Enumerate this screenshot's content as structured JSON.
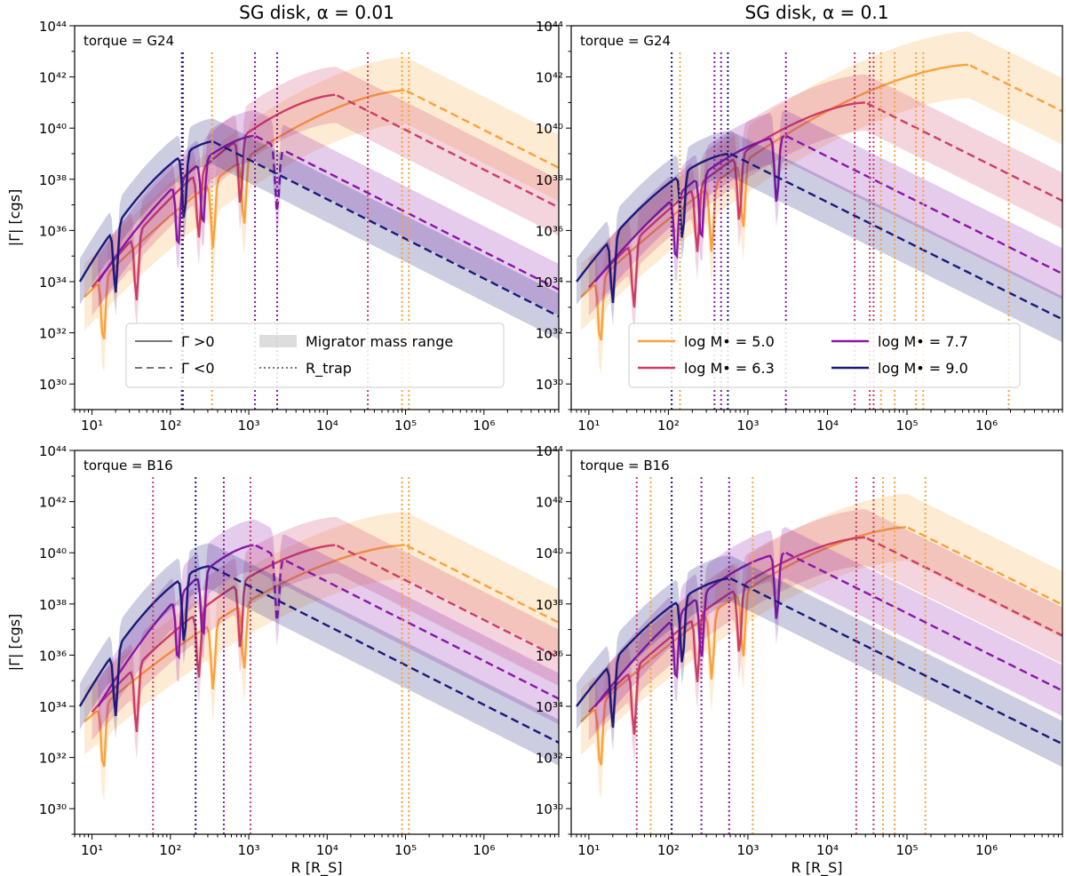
{
  "figure": {
    "legend_style": {
      "entries": [
        {
          "label": "Γ >0",
          "style": "solid"
        },
        {
          "label": "Γ <0",
          "style": "dashed"
        },
        {
          "label": "Migrator mass range",
          "style": "band"
        },
        {
          "label": "R_trap",
          "style": "dotted"
        }
      ],
      "placement": "lower-left",
      "panel": 0
    },
    "legend_mass": {
      "entries": [
        {
          "label": "log M• = 5.0",
          "color": "#f9a23c"
        },
        {
          "label": "log M• = 6.3",
          "color": "#cc3d65"
        },
        {
          "label": "log M• = 7.7",
          "color": "#8a16a8"
        },
        {
          "label": "log M• = 9.0",
          "color": "#1a1a7a"
        }
      ],
      "placement": "lower-right",
      "panel": 1
    }
  },
  "chart_data": [
    {
      "type": "line",
      "title": "SG disk, α = 0.01",
      "annotation": "torque = G24",
      "xlabel": "",
      "ylabel": "|Γ| [cgs]",
      "x_scale": "log",
      "y_scale": "log",
      "xlim": [
        6,
        9000000
      ],
      "ylim": [
        1e+29,
        1e+44
      ],
      "x_ticks": [
        "10¹",
        "10²",
        "10³",
        "10⁴",
        "10⁵",
        "10⁶"
      ],
      "y_ticks": [
        "10³⁰",
        "10³²",
        "10³⁴",
        "10³⁶",
        "10³⁸",
        "10⁴⁰",
        "10⁴²",
        "10⁴⁴"
      ],
      "r_trap": [
        {
          "mass": "log M• = 5.0",
          "x": [
            340,
            90000,
            110000
          ]
        },
        {
          "mass": "log M• = 6.3",
          "x": [
            33000
          ]
        },
        {
          "mass": "log M• = 7.7",
          "x": [
            145,
            1200,
            2300
          ]
        },
        {
          "mass": "log M• = 9.0",
          "x": [
            140
          ]
        }
      ],
      "series": [
        {
          "mass": "log M• = 5.0",
          "color": "#f9a23c",
          "peak": [
            100000,
            3e+41
          ]
        },
        {
          "mass": "log M• = 6.3",
          "color": "#cc3d65",
          "peak": [
            13000,
            2e+41
          ]
        },
        {
          "mass": "log M• = 7.7",
          "color": "#8a16a8",
          "peak": [
            1200,
            5e+39
          ]
        },
        {
          "mass": "log M• = 9.0",
          "color": "#1a1a7a",
          "peak": [
            350,
            3e+39
          ]
        }
      ]
    },
    {
      "type": "line",
      "title": "SG disk, α = 0.1",
      "annotation": "torque = G24",
      "xlabel": "",
      "ylabel": "",
      "x_scale": "log",
      "y_scale": "log",
      "xlim": [
        6,
        9000000
      ],
      "ylim": [
        1e+29,
        1e+44
      ],
      "x_ticks": [
        "10¹",
        "10²",
        "10³",
        "10⁴",
        "10⁵",
        "10⁶"
      ],
      "y_ticks": [
        "10³⁰",
        "10³²",
        "10³⁴",
        "10³⁶",
        "10³⁸",
        "10⁴⁰",
        "10⁴²",
        "10⁴⁴"
      ],
      "r_trap": [
        {
          "mass": "log M• = 5.0",
          "x": [
            140,
            47000,
            70000,
            130000,
            160000,
            1900000
          ]
        },
        {
          "mass": "log M• = 6.3",
          "x": [
            22000,
            34000,
            38000
          ]
        },
        {
          "mass": "log M• = 7.7",
          "x": [
            380,
            460,
            3000
          ]
        },
        {
          "mass": "log M• = 9.0",
          "x": [
            110,
            560
          ]
        }
      ],
      "series": [
        {
          "mass": "log M• = 5.0",
          "color": "#f9a23c",
          "peak": [
            600000,
            3e+42
          ]
        },
        {
          "mass": "log M• = 6.3",
          "color": "#cc3d65",
          "peak": [
            30000,
            1e+41
          ]
        },
        {
          "mass": "log M• = 7.7",
          "color": "#8a16a8",
          "peak": [
            3000,
            5e+39
          ]
        },
        {
          "mass": "log M• = 9.0",
          "color": "#1a1a7a",
          "peak": [
            600,
            1e+39
          ]
        }
      ]
    },
    {
      "type": "line",
      "title": "",
      "annotation": "torque = B16",
      "xlabel": "R [R_S]",
      "ylabel": "|Γ| [cgs]",
      "x_scale": "log",
      "y_scale": "log",
      "xlim": [
        6,
        9000000
      ],
      "ylim": [
        1e+29,
        1e+44
      ],
      "x_ticks": [
        "10¹",
        "10²",
        "10³",
        "10⁴",
        "10⁵",
        "10⁶"
      ],
      "y_ticks": [
        "10³⁰",
        "10³²",
        "10³⁴",
        "10³⁶",
        "10³⁸",
        "10⁴⁰",
        "10⁴²",
        "10⁴⁴"
      ],
      "r_trap": [
        {
          "mass": "log M• = 5.0",
          "x": [
            90000,
            110000
          ]
        },
        {
          "mass": "log M• = 6.3",
          "x": [
            60,
            1050
          ]
        },
        {
          "mass": "log M• = 7.7",
          "x": [
            480
          ]
        },
        {
          "mass": "log M• = 9.0",
          "x": [
            210
          ]
        }
      ],
      "series": [
        {
          "mass": "log M• = 5.0",
          "color": "#f9a23c",
          "peak": [
            100000,
            2e+40
          ]
        },
        {
          "mass": "log M• = 6.3",
          "color": "#cc3d65",
          "peak": [
            13000,
            2e+40
          ]
        },
        {
          "mass": "log M• = 7.7",
          "color": "#8a16a8",
          "peak": [
            1200,
            2e+40
          ]
        },
        {
          "mass": "log M• = 9.0",
          "color": "#1a1a7a",
          "peak": [
            320,
            3e+39
          ]
        }
      ]
    },
    {
      "type": "line",
      "title": "",
      "annotation": "torque = B16",
      "xlabel": "R [R_S]",
      "ylabel": "",
      "x_scale": "log",
      "y_scale": "log",
      "xlim": [
        6,
        9000000
      ],
      "ylim": [
        1e+29,
        1e+44
      ],
      "x_ticks": [
        "10¹",
        "10²",
        "10³",
        "10⁴",
        "10⁵",
        "10⁶"
      ],
      "y_ticks": [
        "10³⁰",
        "10³²",
        "10³⁴",
        "10³⁶",
        "10³⁸",
        "10⁴⁰",
        "10⁴²",
        "10⁴⁴"
      ],
      "r_trap": [
        {
          "mass": "log M• = 5.0",
          "x": [
            60,
            1150,
            50000,
            70000,
            170000
          ]
        },
        {
          "mass": "log M• = 6.3",
          "x": [
            40,
            23000,
            38000
          ]
        },
        {
          "mass": "log M• = 7.7",
          "x": [
            260,
            580
          ]
        },
        {
          "mass": "log M• = 9.0",
          "x": [
            110
          ]
        }
      ],
      "series": [
        {
          "mass": "log M• = 5.0",
          "color": "#f9a23c",
          "peak": [
            100000,
            1e+41
          ]
        },
        {
          "mass": "log M• = 6.3",
          "color": "#cc3d65",
          "peak": [
            30000,
            4e+40
          ]
        },
        {
          "mass": "log M• = 7.7",
          "color": "#8a16a8",
          "peak": [
            3000,
            1e+40
          ]
        },
        {
          "mass": "log M• = 9.0",
          "color": "#1a1a7a",
          "peak": [
            600,
            1e+39
          ]
        }
      ]
    }
  ]
}
